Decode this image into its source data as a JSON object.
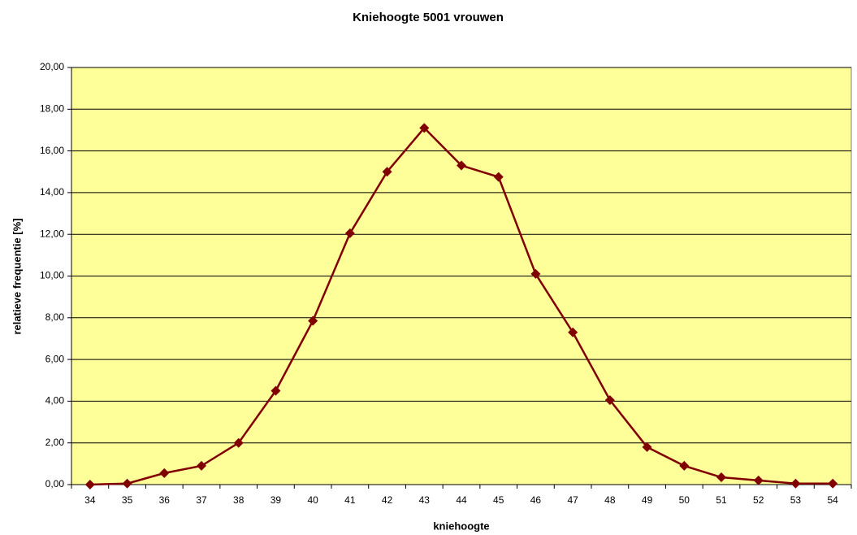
{
  "chart_data": {
    "type": "line",
    "title": "Kniehoogte 5001 vrouwen",
    "x_label": "kniehoogte",
    "y_label": "relatieve frequentie [%]",
    "categories": [
      "34",
      "35",
      "36",
      "37",
      "38",
      "39",
      "40",
      "41",
      "42",
      "43",
      "44",
      "45",
      "46",
      "47",
      "48",
      "49",
      "50",
      "51",
      "52",
      "53",
      "54"
    ],
    "values": [
      0.0,
      0.05,
      0.55,
      0.9,
      2.0,
      4.5,
      7.85,
      12.05,
      15.0,
      17.1,
      15.3,
      14.75,
      10.1,
      7.3,
      4.05,
      1.8,
      0.9,
      0.35,
      0.2,
      0.05,
      0.05
    ],
    "color": "#800000",
    "background": "#ffff99",
    "ylim": [
      0,
      20
    ],
    "yticks": [
      {
        "value": 0,
        "label": "0,00"
      },
      {
        "value": 2,
        "label": "2,00"
      },
      {
        "value": 4,
        "label": "4,00"
      },
      {
        "value": 6,
        "label": "6,00"
      },
      {
        "value": 8,
        "label": "8,00"
      },
      {
        "value": 10,
        "label": "10,00"
      },
      {
        "value": 12,
        "label": "12,00"
      },
      {
        "value": 14,
        "label": "14,00"
      },
      {
        "value": 16,
        "label": "16,00"
      },
      {
        "value": 18,
        "label": "18,00"
      },
      {
        "value": 20,
        "label": "20,00"
      }
    ],
    "grid": true
  }
}
